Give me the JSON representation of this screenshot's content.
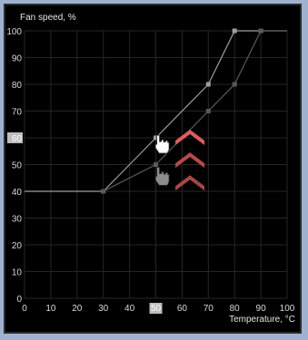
{
  "chart_data": {
    "type": "line",
    "ylabel": "Fan speed, %",
    "xlabel": "Temperature, °C",
    "xlim": [
      0,
      100
    ],
    "ylim": [
      0,
      100
    ],
    "xticks": [
      0,
      10,
      20,
      30,
      40,
      50,
      60,
      70,
      80,
      90,
      100
    ],
    "yticks": [
      0,
      10,
      20,
      30,
      40,
      50,
      60,
      70,
      80,
      90,
      100
    ],
    "highlight_x": 50,
    "highlight_y": 60,
    "grid": true,
    "series": [
      {
        "color": "#9e9e9e",
        "points": [
          [
            0,
            40
          ],
          [
            30,
            40
          ],
          [
            50,
            60
          ],
          [
            70,
            80
          ],
          [
            80,
            100
          ],
          [
            90,
            100
          ],
          [
            100,
            100
          ]
        ]
      },
      {
        "color": "#5a5a5a",
        "points": [
          [
            30,
            40
          ],
          [
            50,
            50
          ],
          [
            70,
            70
          ],
          [
            80,
            80
          ],
          [
            90,
            100
          ],
          [
            100,
            100
          ]
        ]
      }
    ]
  },
  "icons": {
    "cursor_active": "hand-pointer-icon",
    "cursor_ghost": "hand-pointer-icon",
    "arrows": "chevron-up-icon",
    "arrow_colors": [
      "#e05c5c",
      "#b84a4a",
      "#a84545"
    ]
  }
}
